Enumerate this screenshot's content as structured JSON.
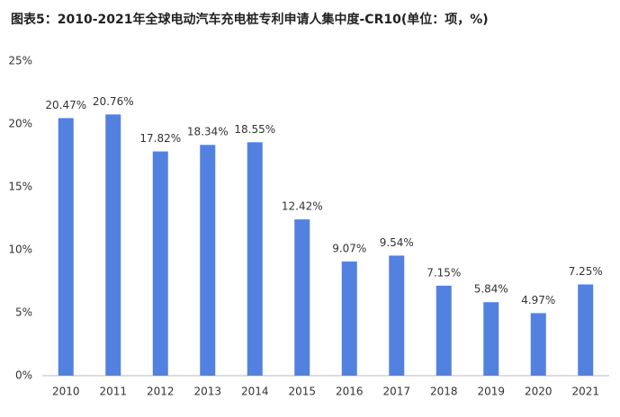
{
  "chart_data": {
    "type": "bar",
    "title": "图表5：2010-2021年全球电动汽车充电桩专利申请人集中度-CR10(单位：项，%)",
    "categories": [
      "2010",
      "2011",
      "2012",
      "2013",
      "2014",
      "2015",
      "2016",
      "2017",
      "2018",
      "2019",
      "2020",
      "2021"
    ],
    "values": [
      20.47,
      20.76,
      17.82,
      18.34,
      18.55,
      12.42,
      9.07,
      9.54,
      7.15,
      5.84,
      4.97,
      7.25
    ],
    "value_labels": [
      "20.47%",
      "20.76%",
      "17.82%",
      "18.34%",
      "18.55%",
      "12.42%",
      "9.07%",
      "9.54%",
      "7.15%",
      "5.84%",
      "4.97%",
      "7.25%"
    ],
    "color": "#5381e0",
    "ylim": [
      0,
      25
    ],
    "yticks": [
      {
        "value": 0,
        "label": "0%"
      },
      {
        "value": 5,
        "label": "5%"
      },
      {
        "value": 10,
        "label": "10%"
      },
      {
        "value": 15,
        "label": "15%"
      },
      {
        "value": 20,
        "label": "20%"
      },
      {
        "value": 25,
        "label": "25%"
      }
    ],
    "grid": false
  }
}
